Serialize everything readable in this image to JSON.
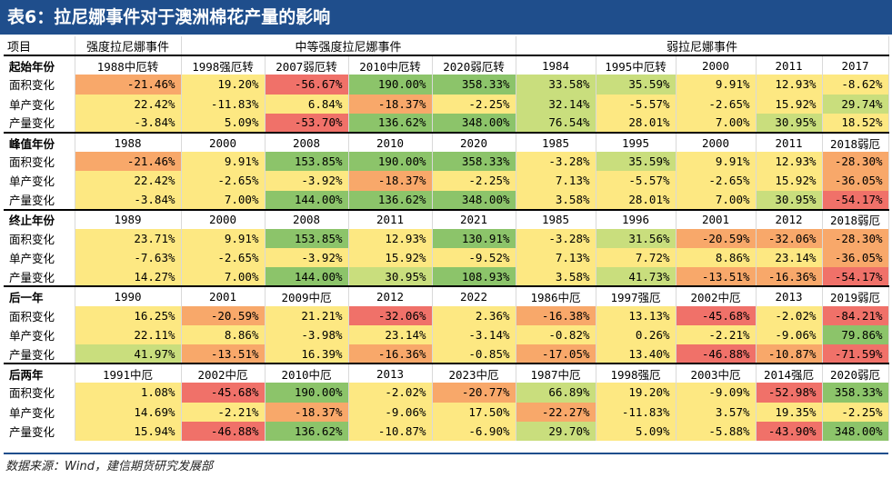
{
  "title": "表6：拉尼娜事件对于澳洲棉花产量的影响",
  "source": "数据来源：Wind，建信期货研究发展部",
  "header": [
    "项目",
    "强度拉尼娜事件",
    "中等强度拉尼娜事件",
    "弱拉尼娜事件"
  ],
  "colors": {
    "red": "#f07169",
    "orange": "#f8a86a",
    "yellow": "#fde882",
    "lightgreen": "#c9de7d",
    "green": "#8cc46a",
    "white": "#ffffff",
    "title_bg": "#1f4e8c"
  },
  "sections": [
    {
      "label": "起始年份",
      "years": [
        "1988中厄转",
        "1998强厄转",
        "2007弱厄转",
        "2010中厄转",
        "2020弱厄转",
        "1984",
        "1995中厄转",
        "2000",
        "2011",
        "2017"
      ],
      "rows": [
        {
          "label": "面积变化",
          "values": [
            "-21.46%",
            "19.20%",
            "-56.67%",
            "190.00%",
            "358.33%",
            "33.58%",
            "35.59%",
            "9.91%",
            "12.93%",
            "-8.62%"
          ],
          "colors": [
            "orange",
            "yellow",
            "red",
            "green",
            "green",
            "lightgreen",
            "lightgreen",
            "yellow",
            "yellow",
            "yellow"
          ]
        },
        {
          "label": "单产变化",
          "values": [
            "22.42%",
            "-11.83%",
            "6.84%",
            "-18.37%",
            "-2.25%",
            "32.14%",
            "-5.57%",
            "-2.65%",
            "15.92%",
            "29.74%"
          ],
          "colors": [
            "yellow",
            "yellow",
            "yellow",
            "orange",
            "yellow",
            "lightgreen",
            "yellow",
            "yellow",
            "yellow",
            "lightgreen"
          ]
        },
        {
          "label": "产量变化",
          "values": [
            "-3.84%",
            "5.09%",
            "-53.70%",
            "136.62%",
            "348.00%",
            "76.54%",
            "28.01%",
            "7.00%",
            "30.95%",
            "18.52%"
          ],
          "colors": [
            "yellow",
            "yellow",
            "red",
            "green",
            "green",
            "lightgreen",
            "yellow",
            "yellow",
            "lightgreen",
            "yellow"
          ]
        }
      ]
    },
    {
      "label": "峰值年份",
      "years": [
        "1988",
        "2000",
        "2008",
        "2010",
        "2020",
        "1985",
        "1995",
        "2000",
        "2011",
        "2018弱厄"
      ],
      "rows": [
        {
          "label": "面积变化",
          "values": [
            "-21.46%",
            "9.91%",
            "153.85%",
            "190.00%",
            "358.33%",
            "-3.28%",
            "35.59%",
            "9.91%",
            "12.93%",
            "-28.30%"
          ],
          "colors": [
            "orange",
            "yellow",
            "green",
            "green",
            "green",
            "yellow",
            "lightgreen",
            "yellow",
            "yellow",
            "orange"
          ]
        },
        {
          "label": "单产变化",
          "values": [
            "22.42%",
            "-2.65%",
            "-3.92%",
            "-18.37%",
            "-2.25%",
            "7.13%",
            "-5.57%",
            "-2.65%",
            "15.92%",
            "-36.05%"
          ],
          "colors": [
            "yellow",
            "yellow",
            "yellow",
            "orange",
            "yellow",
            "yellow",
            "yellow",
            "yellow",
            "yellow",
            "orange"
          ]
        },
        {
          "label": "产量变化",
          "values": [
            "-3.84%",
            "7.00%",
            "144.00%",
            "136.62%",
            "348.00%",
            "3.58%",
            "28.01%",
            "7.00%",
            "30.95%",
            "-54.17%"
          ],
          "colors": [
            "yellow",
            "yellow",
            "green",
            "green",
            "green",
            "yellow",
            "yellow",
            "yellow",
            "lightgreen",
            "red"
          ]
        }
      ]
    },
    {
      "label": "终止年份",
      "years": [
        "1989",
        "2000",
        "2008",
        "2011",
        "2021",
        "1985",
        "1996",
        "2001",
        "2012",
        "2018弱厄"
      ],
      "rows": [
        {
          "label": "面积变化",
          "values": [
            "23.71%",
            "9.91%",
            "153.85%",
            "12.93%",
            "130.91%",
            "-3.28%",
            "31.56%",
            "-20.59%",
            "-32.06%",
            "-28.30%"
          ],
          "colors": [
            "yellow",
            "yellow",
            "green",
            "yellow",
            "green",
            "yellow",
            "lightgreen",
            "orange",
            "orange",
            "orange"
          ]
        },
        {
          "label": "单产变化",
          "values": [
            "-7.63%",
            "-2.65%",
            "-3.92%",
            "15.92%",
            "-9.52%",
            "7.13%",
            "7.72%",
            "8.86%",
            "23.14%",
            "-36.05%"
          ],
          "colors": [
            "yellow",
            "yellow",
            "yellow",
            "yellow",
            "yellow",
            "yellow",
            "yellow",
            "yellow",
            "yellow",
            "orange"
          ]
        },
        {
          "label": "产量变化",
          "values": [
            "14.27%",
            "7.00%",
            "144.00%",
            "30.95%",
            "108.93%",
            "3.58%",
            "41.73%",
            "-13.51%",
            "-16.36%",
            "-54.17%"
          ],
          "colors": [
            "yellow",
            "yellow",
            "green",
            "lightgreen",
            "green",
            "yellow",
            "lightgreen",
            "orange",
            "orange",
            "red"
          ]
        }
      ]
    },
    {
      "label": "后一年",
      "years": [
        "1990",
        "2001",
        "2009中厄",
        "2012",
        "2022",
        "1986中厄",
        "1997强厄",
        "2002中厄",
        "2013",
        "2019弱厄"
      ],
      "rows": [
        {
          "label": "面积变化",
          "values": [
            "16.25%",
            "-20.59%",
            "21.21%",
            "-32.06%",
            "2.36%",
            "-16.38%",
            "13.13%",
            "-45.68%",
            "-2.02%",
            "-84.21%"
          ],
          "colors": [
            "yellow",
            "orange",
            "yellow",
            "red",
            "yellow",
            "orange",
            "yellow",
            "red",
            "yellow",
            "red"
          ]
        },
        {
          "label": "单产变化",
          "values": [
            "22.11%",
            "8.86%",
            "-3.98%",
            "23.14%",
            "-3.14%",
            "-0.82%",
            "0.26%",
            "-2.21%",
            "-9.06%",
            "79.86%"
          ],
          "colors": [
            "yellow",
            "yellow",
            "yellow",
            "yellow",
            "yellow",
            "yellow",
            "yellow",
            "yellow",
            "yellow",
            "green"
          ]
        },
        {
          "label": "产量变化",
          "values": [
            "41.97%",
            "-13.51%",
            "16.39%",
            "-16.36%",
            "-0.85%",
            "-17.05%",
            "13.40%",
            "-46.88%",
            "-10.87%",
            "-71.59%"
          ],
          "colors": [
            "lightgreen",
            "orange",
            "yellow",
            "orange",
            "yellow",
            "orange",
            "yellow",
            "red",
            "orange",
            "red"
          ]
        }
      ]
    },
    {
      "label": "后两年",
      "years": [
        "1991中厄",
        "2002中厄",
        "2010中厄",
        "2013",
        "2023中厄",
        "1987中厄",
        "1998强厄",
        "2003中厄",
        "2014强厄",
        "2020弱厄"
      ],
      "rows": [
        {
          "label": "面积变化",
          "values": [
            "1.08%",
            "-45.68%",
            "190.00%",
            "-2.02%",
            "-20.77%",
            "66.89%",
            "19.20%",
            "-9.09%",
            "-52.98%",
            "358.33%"
          ],
          "colors": [
            "yellow",
            "red",
            "green",
            "yellow",
            "orange",
            "lightgreen",
            "yellow",
            "yellow",
            "red",
            "green"
          ]
        },
        {
          "label": "单产变化",
          "values": [
            "14.69%",
            "-2.21%",
            "-18.37%",
            "-9.06%",
            "17.50%",
            "-22.27%",
            "-11.83%",
            "3.57%",
            "19.35%",
            "-2.25%"
          ],
          "colors": [
            "yellow",
            "yellow",
            "orange",
            "yellow",
            "yellow",
            "orange",
            "yellow",
            "yellow",
            "yellow",
            "yellow"
          ]
        },
        {
          "label": "产量变化",
          "values": [
            "15.94%",
            "-46.88%",
            "136.62%",
            "-10.87%",
            "-6.90%",
            "29.70%",
            "5.09%",
            "-5.88%",
            "-43.90%",
            "348.00%"
          ],
          "colors": [
            "yellow",
            "red",
            "green",
            "yellow",
            "yellow",
            "lightgreen",
            "yellow",
            "yellow",
            "red",
            "green"
          ]
        }
      ]
    }
  ]
}
